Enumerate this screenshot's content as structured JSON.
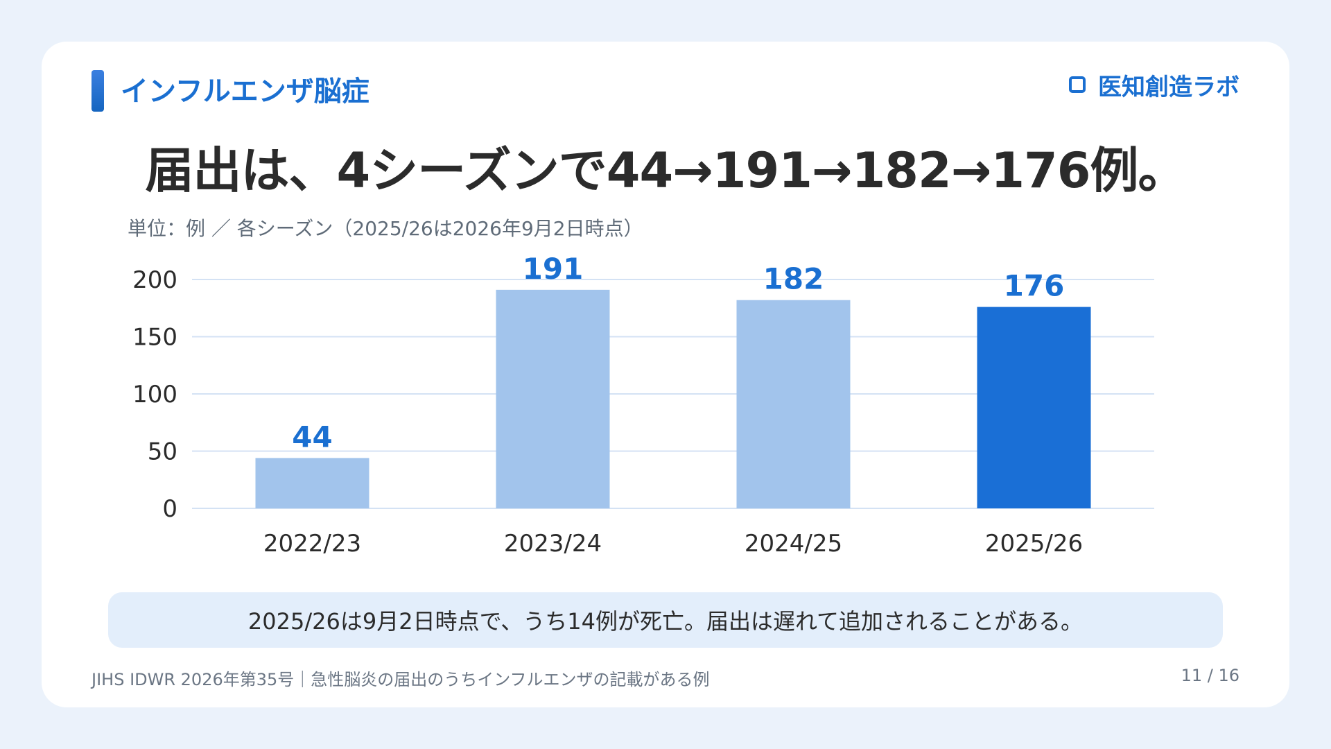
{
  "section_label": "インフルエンザ脳症",
  "brand": {
    "name": "医知創造ラボ",
    "icon": "square-outline-icon",
    "color": "#1a6fd1"
  },
  "headline": "届出は、4シーズンで44→191→182→176例。",
  "unit_note": "単位：例 ／ 各シーズン（2025/26は2026年9月2日時点）",
  "note": "2025/26は9月2日時点で、うち14例が死亡。届出は遅れて追加されることがある。",
  "footer": {
    "source": "JIHS IDWR 2026年第35号｜急性脳炎の届出のうちインフルエンザの記載がある例",
    "page": "11 / 16"
  },
  "colors": {
    "background": "#ebf2fb",
    "bar_past": "#a2c4ec",
    "bar_current": "#1a6fd6",
    "value_label": "#1a6fd1",
    "grid": "#d4e2f4"
  },
  "chart_data": {
    "type": "bar",
    "categories": [
      "2022/23",
      "2023/24",
      "2024/25",
      "2025/26"
    ],
    "values": [
      44,
      191,
      182,
      176
    ],
    "value_labels": [
      "44",
      "191",
      "182",
      "176"
    ],
    "highlight_index": 3,
    "yticks": [
      0,
      50,
      100,
      150,
      200
    ],
    "ylim": [
      0,
      200
    ],
    "grid": true,
    "xlabel": "",
    "ylabel": ""
  }
}
